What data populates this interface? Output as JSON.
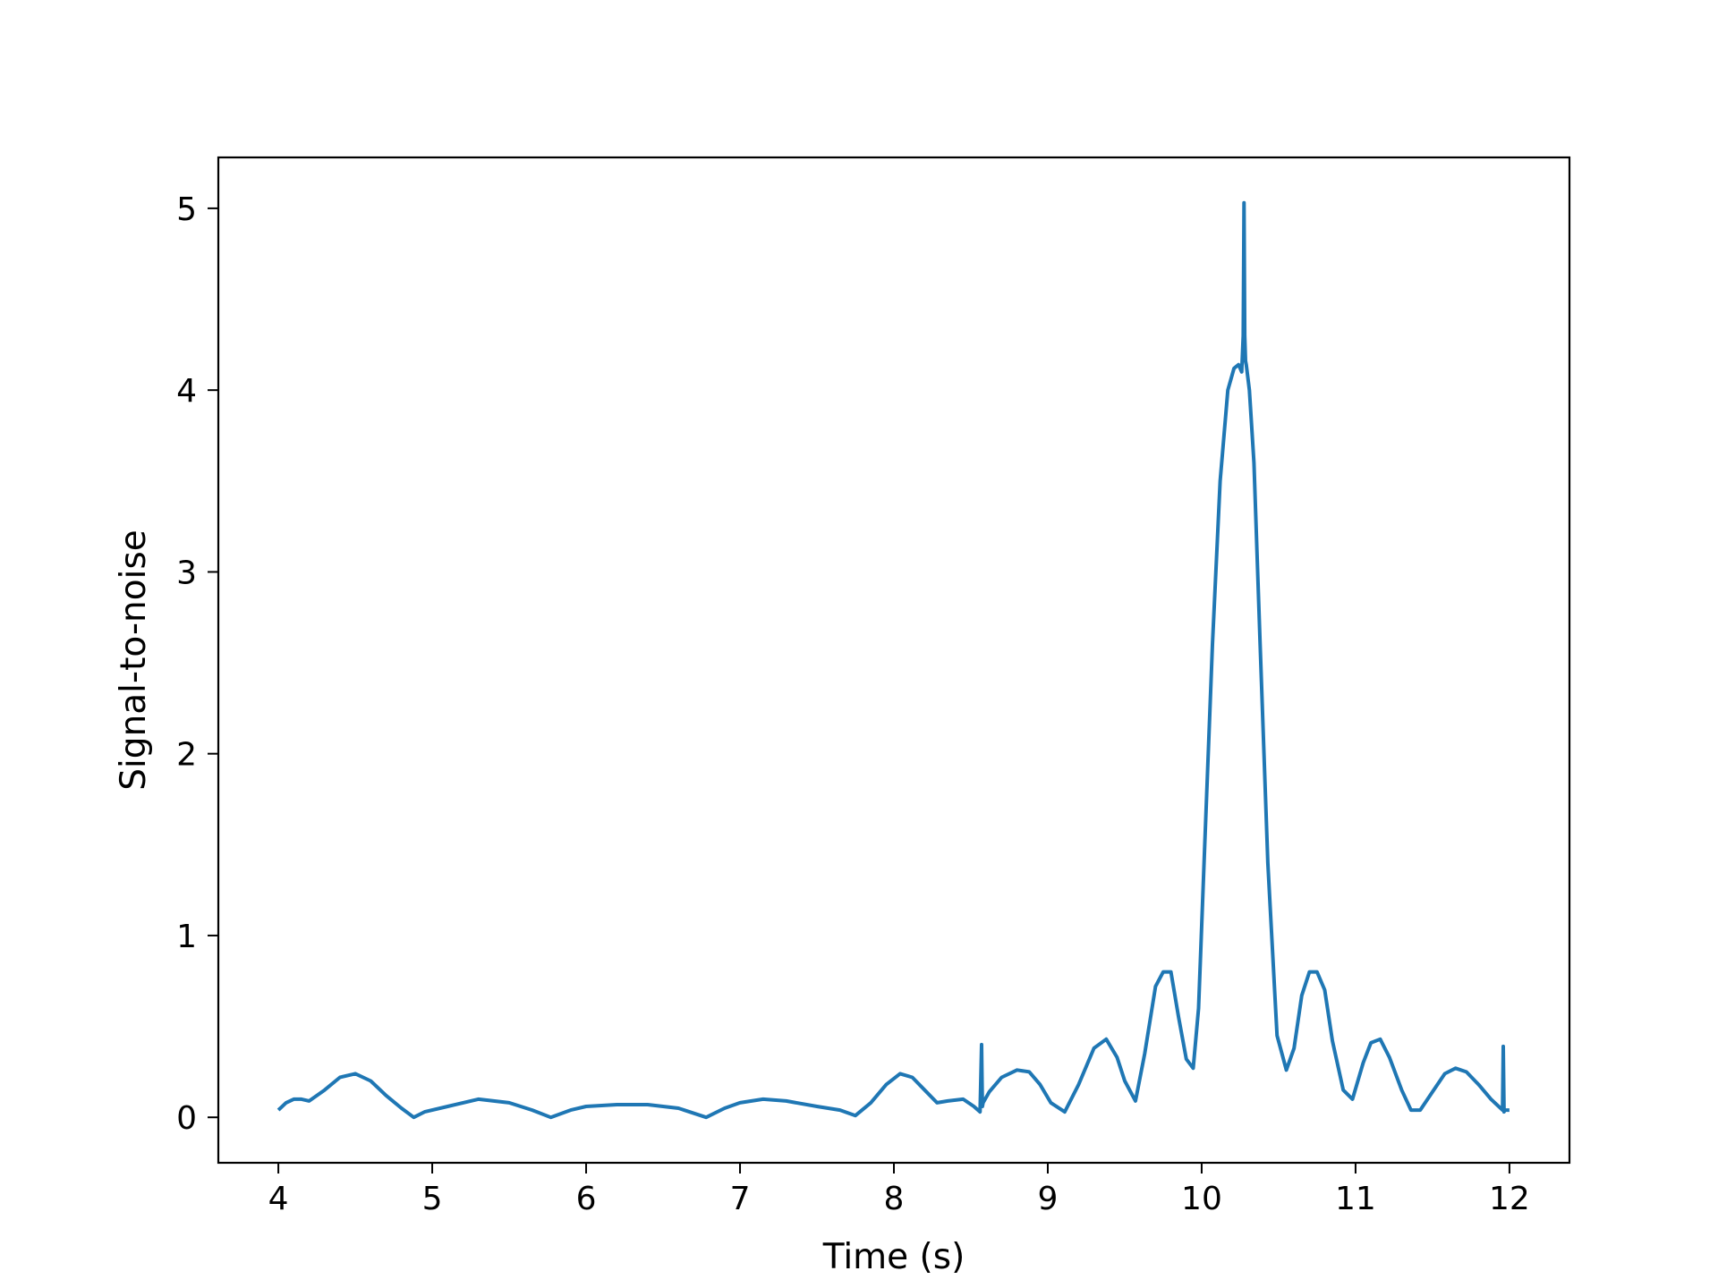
{
  "chart_data": {
    "type": "line",
    "title": "",
    "xlabel": "Time (s)",
    "ylabel": "Signal-to-noise",
    "xlim": [
      3.61,
      12.39
    ],
    "ylim": [
      -0.25,
      5.28
    ],
    "xticks": [
      4,
      5,
      6,
      7,
      8,
      9,
      10,
      11,
      12
    ],
    "xtick_labels": [
      "4",
      "5",
      "6",
      "7",
      "8",
      "9",
      "10",
      "11",
      "12"
    ],
    "yticks": [
      0,
      1,
      2,
      3,
      4,
      5
    ],
    "ytick_labels": [
      "0",
      "1",
      "2",
      "3",
      "4",
      "5"
    ],
    "grid": false,
    "legend": "none",
    "line_color": "#1f77b4",
    "series": [
      {
        "x": [
          4.0,
          4.05,
          4.1,
          4.15,
          4.2,
          4.3,
          4.4,
          4.5,
          4.6,
          4.7,
          4.8,
          4.88,
          4.95,
          5.1,
          5.3,
          5.5,
          5.65,
          5.77,
          5.9,
          6.0,
          6.2,
          6.4,
          6.6,
          6.78,
          6.9,
          7.0,
          7.15,
          7.3,
          7.5,
          7.65,
          7.75,
          7.85,
          7.95,
          8.04,
          8.12,
          8.2,
          8.28,
          8.35,
          8.45,
          8.52,
          8.56,
          8.57,
          8.575,
          8.58,
          8.62,
          8.7,
          8.8,
          8.88,
          8.95,
          9.02,
          9.11,
          9.2,
          9.3,
          9.38,
          9.45,
          9.5,
          9.57,
          9.63,
          9.7,
          9.75,
          9.8,
          9.85,
          9.9,
          9.945,
          9.98,
          10.02,
          10.07,
          10.12,
          10.17,
          10.21,
          10.24,
          10.26,
          10.27,
          10.275,
          10.28,
          10.285,
          10.29,
          10.31,
          10.34,
          10.38,
          10.43,
          10.49,
          10.55,
          10.6,
          10.65,
          10.7,
          10.75,
          10.8,
          10.85,
          10.92,
          10.98,
          11.05,
          11.1,
          11.16,
          11.22,
          11.3,
          11.36,
          11.42,
          11.5,
          11.58,
          11.65,
          11.72,
          11.8,
          11.88,
          11.93,
          11.955,
          11.96,
          11.965,
          11.97,
          12.0
        ],
        "y": [
          0.04,
          0.08,
          0.1,
          0.1,
          0.09,
          0.15,
          0.22,
          0.24,
          0.2,
          0.12,
          0.05,
          0.0,
          0.03,
          0.06,
          0.1,
          0.08,
          0.04,
          0.0,
          0.04,
          0.06,
          0.07,
          0.07,
          0.05,
          0.0,
          0.05,
          0.08,
          0.1,
          0.09,
          0.06,
          0.04,
          0.01,
          0.08,
          0.18,
          0.24,
          0.22,
          0.15,
          0.08,
          0.09,
          0.1,
          0.06,
          0.03,
          0.4,
          0.06,
          0.08,
          0.14,
          0.22,
          0.26,
          0.25,
          0.18,
          0.08,
          0.03,
          0.18,
          0.38,
          0.43,
          0.33,
          0.2,
          0.09,
          0.35,
          0.72,
          0.8,
          0.8,
          0.55,
          0.32,
          0.27,
          0.6,
          1.5,
          2.6,
          3.5,
          4.0,
          4.12,
          4.14,
          4.1,
          4.3,
          5.03,
          4.3,
          4.16,
          4.14,
          4.0,
          3.6,
          2.6,
          1.4,
          0.45,
          0.26,
          0.38,
          0.67,
          0.8,
          0.8,
          0.7,
          0.42,
          0.15,
          0.1,
          0.3,
          0.41,
          0.43,
          0.33,
          0.15,
          0.04,
          0.04,
          0.14,
          0.24,
          0.27,
          0.25,
          0.18,
          0.1,
          0.06,
          0.04,
          0.39,
          0.03,
          0.04,
          0.04
        ]
      }
    ]
  }
}
